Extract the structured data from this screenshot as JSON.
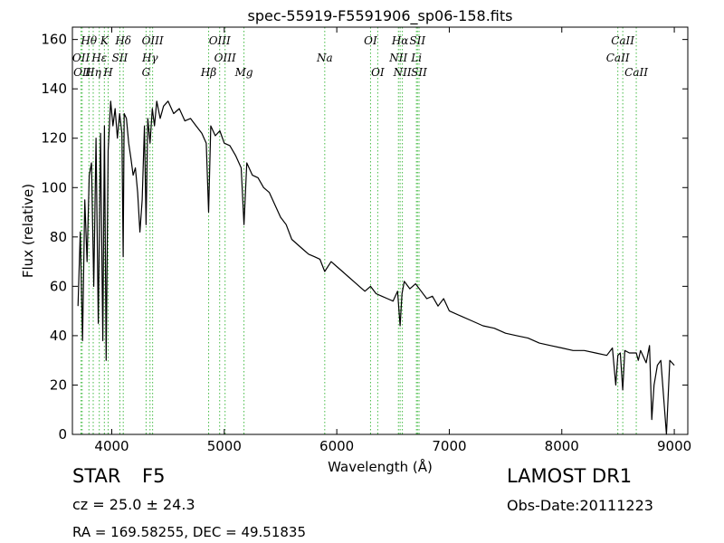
{
  "chart_data": {
    "type": "line",
    "title": "spec-55919-F5591906_sp06-158.fits",
    "xlabel": "Wavelength (Å)",
    "ylabel": "Flux (relative)",
    "xlim": [
      3650,
      9120
    ],
    "ylim": [
      0,
      165
    ],
    "xticks": [
      4000,
      5000,
      6000,
      7000,
      8000,
      9000
    ],
    "yticks": [
      0,
      20,
      40,
      60,
      80,
      100,
      120,
      140,
      160
    ],
    "line_color": "#000000",
    "marker_line_color": "#44bb44",
    "spectrum": {
      "x": [
        3700,
        3720,
        3740,
        3760,
        3780,
        3800,
        3820,
        3840,
        3860,
        3880,
        3900,
        3920,
        3935,
        3950,
        3968,
        3990,
        4010,
        4030,
        4050,
        4070,
        4090,
        4101,
        4110,
        4130,
        4150,
        4170,
        4190,
        4210,
        4230,
        4250,
        4270,
        4290,
        4305,
        4320,
        4340,
        4360,
        4380,
        4400,
        4430,
        4460,
        4500,
        4550,
        4600,
        4650,
        4700,
        4750,
        4800,
        4840,
        4861,
        4880,
        4920,
        4960,
        5000,
        5050,
        5100,
        5150,
        5175,
        5200,
        5250,
        5300,
        5350,
        5400,
        5450,
        5500,
        5550,
        5600,
        5650,
        5700,
        5750,
        5800,
        5850,
        5893,
        5950,
        6000,
        6050,
        6100,
        6150,
        6200,
        6250,
        6300,
        6350,
        6400,
        6450,
        6500,
        6540,
        6563,
        6580,
        6600,
        6650,
        6700,
        6750,
        6800,
        6850,
        6900,
        6950,
        7000,
        7100,
        7200,
        7300,
        7400,
        7500,
        7600,
        7700,
        7800,
        7900,
        8000,
        8100,
        8200,
        8300,
        8400,
        8450,
        8480,
        8498,
        8520,
        8542,
        8560,
        8600,
        8662,
        8680,
        8700,
        8750,
        8780,
        8800,
        8820,
        8850,
        8880,
        8900,
        8930,
        8960,
        9000
      ],
      "y": [
        52,
        82,
        38,
        95,
        70,
        105,
        110,
        60,
        120,
        45,
        122,
        38,
        125,
        30,
        115,
        135,
        125,
        132,
        120,
        130,
        122,
        72,
        130,
        128,
        118,
        112,
        105,
        108,
        98,
        82,
        95,
        125,
        85,
        128,
        118,
        132,
        125,
        135,
        128,
        133,
        135,
        130,
        132,
        127,
        128,
        125,
        122,
        118,
        90,
        125,
        121,
        123,
        118,
        117,
        113,
        108,
        85,
        110,
        105,
        104,
        100,
        98,
        93,
        88,
        85,
        79,
        77,
        75,
        73,
        72,
        71,
        66,
        70,
        68,
        66,
        64,
        62,
        60,
        58,
        60,
        57,
        56,
        55,
        54,
        58,
        44,
        57,
        62,
        59,
        61,
        58,
        55,
        56,
        52,
        55,
        50,
        48,
        46,
        44,
        43,
        41,
        40,
        39,
        37,
        36,
        35,
        34,
        34,
        33,
        32,
        35,
        20,
        32,
        33,
        18,
        34,
        33,
        33,
        30,
        34,
        29,
        36,
        6,
        20,
        28,
        30,
        18,
        0,
        30,
        28
      ]
    },
    "line_markers": {
      "top": [
        {
          "label": "Hθ",
          "x": 3797
        },
        {
          "label": "K",
          "x": 3934
        },
        {
          "label": "Hδ",
          "x": 4102
        },
        {
          "label": "OIII",
          "x": 4363
        },
        {
          "label": "OIII",
          "x": 4959
        },
        {
          "label": "OI",
          "x": 6300
        },
        {
          "label": "Hα",
          "x": 6563
        },
        {
          "label": "SII",
          "x": 6717
        },
        {
          "label": "CaII",
          "x": 8542
        }
      ],
      "mid": [
        {
          "label": "OII",
          "x": 3727
        },
        {
          "label": "Hε",
          "x": 3889
        },
        {
          "label": "SII",
          "x": 4072
        },
        {
          "label": "Hγ",
          "x": 4340
        },
        {
          "label": "OIII",
          "x": 5007
        },
        {
          "label": "Na",
          "x": 5893
        },
        {
          "label": "NII",
          "x": 6548
        },
        {
          "label": "Li",
          "x": 6708
        },
        {
          "label": "CaII",
          "x": 8498
        }
      ],
      "low": [
        {
          "label": "OII",
          "x": 3737
        },
        {
          "label": "Hη",
          "x": 3835
        },
        {
          "label": "H",
          "x": 3968
        },
        {
          "label": "G",
          "x": 4305
        },
        {
          "label": "Hβ",
          "x": 4861
        },
        {
          "label": "Mg",
          "x": 5175
        },
        {
          "label": "OI",
          "x": 6364
        },
        {
          "label": "NII",
          "x": 6583
        },
        {
          "label": "SII",
          "x": 6731
        },
        {
          "label": "CaII",
          "x": 8662
        }
      ]
    }
  },
  "info": {
    "object_class": "STAR",
    "subclass": "F5",
    "survey": "LAMOST DR1",
    "redshift": "cz = 25.0 ± 24.3",
    "obs_date": "Obs-Date:20111223",
    "coords": "RA = 169.58255, DEC = 49.51835"
  }
}
